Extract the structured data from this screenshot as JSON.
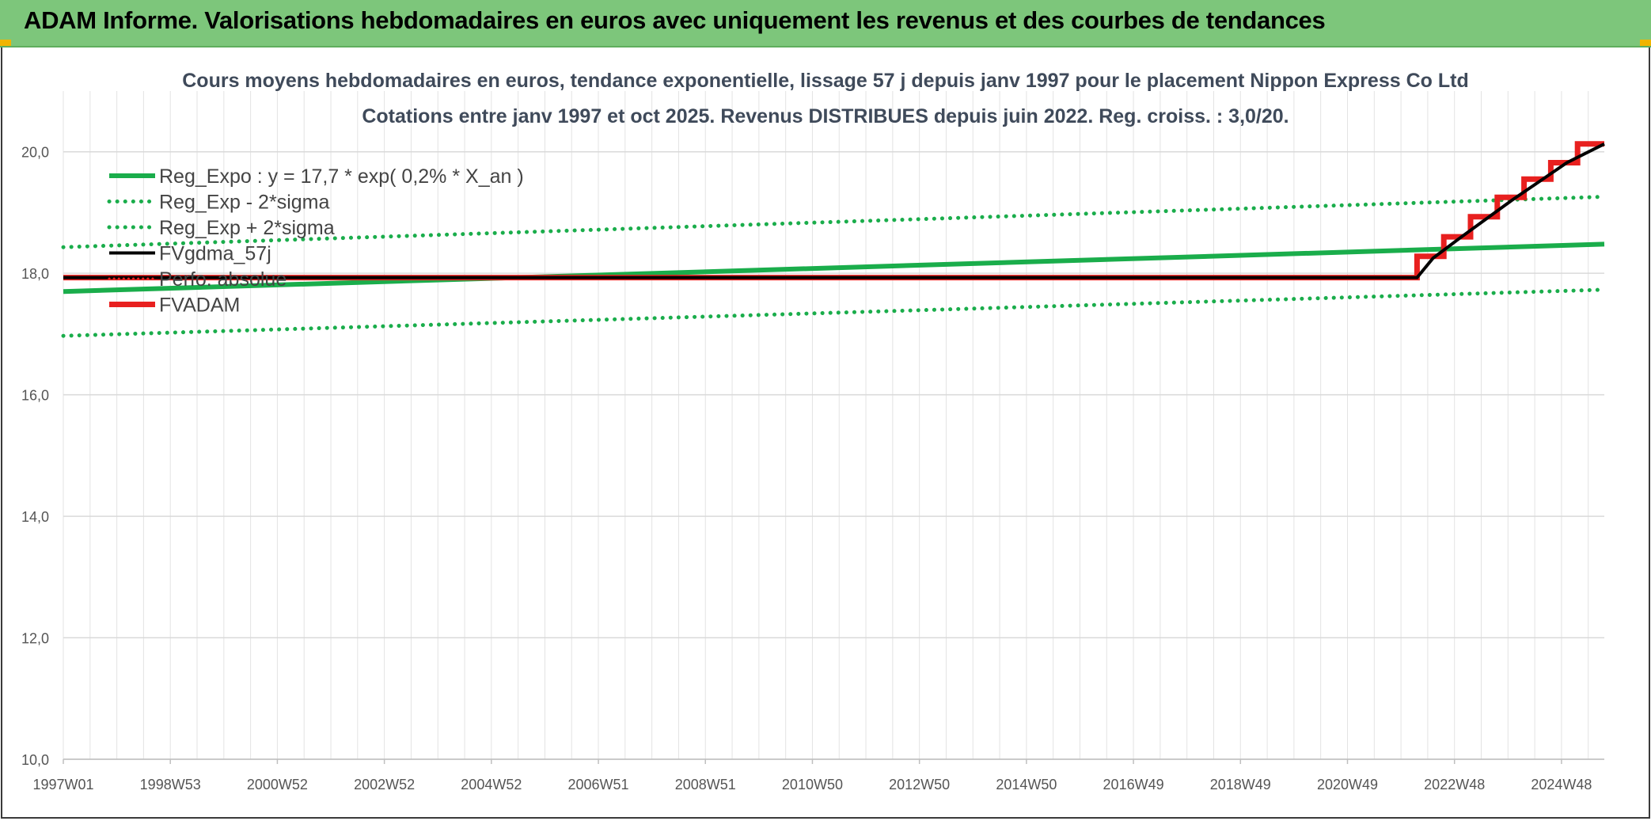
{
  "header": {
    "title": "ADAM Informe. Valorisations hebdomadaires en euros avec uniquement les revenus et des courbes de tendances"
  },
  "colors": {
    "banner": "#7dc67b",
    "reg_expo": "#1aad4b",
    "fvadam": "#e8201f",
    "fvgdma": "#000000",
    "perfo": "#e8201f"
  },
  "chart_data": {
    "type": "line",
    "title_line1": "Cours moyens hebdomadaires en euros, tendance exponentielle, lissage 57 j depuis janv 1997 pour le placement Nippon Express Co Ltd",
    "title_line2": "Cotations entre janv 1997 et oct 2025. Revenus DISTRIBUES depuis juin 2022. Reg. croiss. : 3,0/20.",
    "xlabel": "",
    "ylabel": "",
    "x_range": [
      1997.0,
      2025.8
    ],
    "ylim": [
      10,
      21
    ],
    "yticks": [
      "10,0",
      "12,0",
      "14,0",
      "16,0",
      "18,0",
      "20,0"
    ],
    "ytick_values": [
      10,
      12,
      14,
      16,
      18,
      20
    ],
    "xticks": [
      "1997W01",
      "1998W53",
      "2000W52",
      "2002W52",
      "2004W52",
      "2006W51",
      "2008W51",
      "2010W50",
      "2012W50",
      "2014W50",
      "2016W49",
      "2018W49",
      "2020W49",
      "2022W48",
      "2024W48"
    ],
    "xtick_values": [
      1997.0,
      1999.0,
      2001.0,
      2003.0,
      2005.0,
      2007.0,
      2009.0,
      2011.0,
      2013.0,
      2015.0,
      2017.0,
      2019.0,
      2021.0,
      2023.0,
      2025.0
    ],
    "grid": true,
    "legend_position": "top-left",
    "legend": [
      "Reg_Expo : y = 17,7 * exp( 0,2% *  X_an )",
      "Reg_Exp - 2*sigma",
      "Reg_Exp + 2*sigma",
      "FVgdma_57j",
      "Perfo. absolue",
      "FVADAM"
    ],
    "series": [
      {
        "name": "Reg_Expo",
        "style": "solid",
        "color": "#1aad4b",
        "x": [
          1997.0,
          2025.8
        ],
        "values": [
          17.7,
          18.48
        ]
      },
      {
        "name": "Reg_Exp - 2*sigma",
        "style": "dotted",
        "color": "#1aad4b",
        "x": [
          1997.0,
          2025.8
        ],
        "values": [
          16.97,
          17.73
        ]
      },
      {
        "name": "Reg_Exp + 2*sigma",
        "style": "dotted",
        "color": "#1aad4b",
        "x": [
          1997.0,
          2025.8
        ],
        "values": [
          18.43,
          19.26
        ]
      },
      {
        "name": "FVgdma_57j",
        "style": "solid",
        "color": "#000000",
        "x": [
          1997.0,
          2022.3,
          2022.6,
          2023.1,
          2023.6,
          2024.1,
          2024.6,
          2025.1,
          2025.8
        ],
        "values": [
          17.93,
          17.93,
          18.25,
          18.58,
          18.9,
          19.22,
          19.52,
          19.82,
          20.13
        ]
      },
      {
        "name": "Perfo. absolue",
        "style": "dotted",
        "color": "#e8201f",
        "x": [],
        "values": []
      },
      {
        "name": "FVADAM",
        "style": "step",
        "color": "#e8201f",
        "x": [
          1997.0,
          2022.3,
          2022.3,
          2022.8,
          2022.8,
          2023.3,
          2023.3,
          2023.8,
          2023.8,
          2024.3,
          2024.3,
          2024.8,
          2024.8,
          2025.3,
          2025.3,
          2025.8
        ],
        "values": [
          17.93,
          17.93,
          18.28,
          18.28,
          18.6,
          18.6,
          18.93,
          18.93,
          19.25,
          19.25,
          19.55,
          19.55,
          19.82,
          19.82,
          20.13,
          20.13
        ]
      }
    ]
  }
}
